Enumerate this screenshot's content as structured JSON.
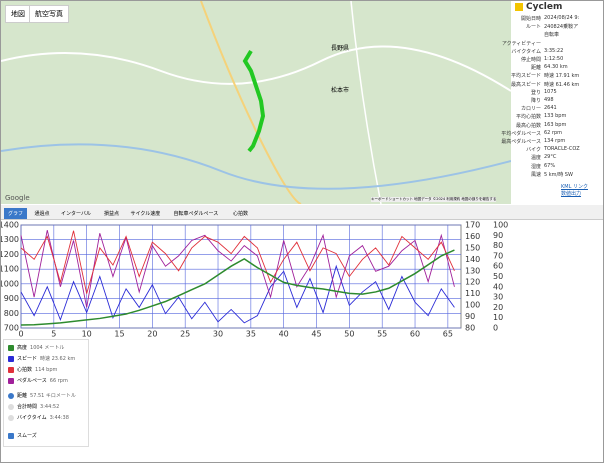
{
  "map": {
    "tabs": [
      "地図",
      "航空写真"
    ],
    "labels": [
      "長野県",
      "松本市",
      "Google"
    ],
    "footer": "キーボードショートカット 地図データ ©2024 利用規約 地図の誤りを報告する"
  },
  "summary": {
    "title": "Cyclem",
    "rows": [
      [
        "開始日時",
        "2024/08/24 9:"
      ],
      [
        "ルート",
        "240824乗鞍ア"
      ],
      [
        "",
        "自転車"
      ],
      [
        "アクティビティー",
        ""
      ],
      [
        "バイクタイム",
        "3:35:22"
      ],
      [
        "停止時間",
        "1:12:50"
      ],
      [
        "距離",
        "64.30 km"
      ],
      [
        "平均スピード",
        "時速 17.91 km"
      ],
      [
        "最高スピード",
        "時速 61.46 km"
      ],
      [
        "登り",
        "1075"
      ],
      [
        "降り",
        "498"
      ],
      [
        "カロリー",
        "2641"
      ],
      [
        "平均心拍数",
        "133 bpm"
      ],
      [
        "最高心拍数",
        "163 bpm"
      ],
      [
        "平均ペダルペース",
        "62 rpm"
      ],
      [
        "最高ペダルペース",
        "134 rpm"
      ],
      [
        "バイク",
        "TORACLE-COZ"
      ],
      [
        "温度",
        "29°C"
      ],
      [
        "湿度",
        "67%"
      ],
      [
        "風速",
        "5 km/時 SW"
      ]
    ],
    "links": [
      "KML リンク",
      "数値出力"
    ]
  },
  "tabs": [
    "グラフ",
    "通過点",
    "インターバル",
    "損益点",
    "サイクル速度",
    "自転車ペダルペース",
    "心拍数"
  ],
  "chart_data": {
    "type": "line",
    "x": [
      0,
      2,
      4,
      6,
      8,
      10,
      12,
      14,
      16,
      18,
      20,
      22,
      24,
      26,
      28,
      30,
      32,
      34,
      36,
      38,
      40,
      42,
      44,
      46,
      48,
      50,
      52,
      54,
      56,
      58,
      60,
      62,
      64,
      66
    ],
    "xlim": [
      0,
      67
    ],
    "xticks": [
      0,
      5,
      10,
      15,
      20,
      25,
      30,
      35,
      40,
      45,
      50,
      55,
      60,
      65
    ],
    "ylim": [
      700,
      1400
    ],
    "yticks": [
      700,
      800,
      900,
      1000,
      1100,
      1200,
      1300,
      1400
    ],
    "y2lim": [
      80,
      170
    ],
    "y2ticks": [
      80,
      90,
      100,
      110,
      120,
      130,
      140,
      150,
      160,
      170
    ],
    "y3lim": [
      0,
      100
    ],
    "y3ticks": [
      0,
      10,
      20,
      30,
      40,
      50,
      60,
      70,
      80,
      90,
      100
    ],
    "series": [
      {
        "name": "高度",
        "color": "#2e8b2e",
        "axis": "y",
        "values": [
          720,
          722,
          728,
          735,
          745,
          755,
          765,
          780,
          795,
          820,
          850,
          880,
          920,
          960,
          1000,
          1060,
          1120,
          1170,
          1110,
          1060,
          1010,
          990,
          975,
          965,
          950,
          935,
          930,
          945,
          970,
          1020,
          1070,
          1130,
          1190,
          1230
        ]
      },
      {
        "name": "スピード",
        "color": "#2b2bd6",
        "axis": "y3",
        "values": [
          35,
          12,
          40,
          8,
          45,
          15,
          50,
          10,
          38,
          20,
          42,
          14,
          30,
          9,
          25,
          6,
          18,
          5,
          12,
          40,
          55,
          20,
          48,
          15,
          60,
          22,
          35,
          45,
          18,
          50,
          25,
          12,
          38,
          20
        ]
      },
      {
        "name": "心拍数",
        "color": "#e0303a",
        "axis": "y2",
        "values": [
          150,
          140,
          160,
          120,
          165,
          110,
          150,
          135,
          160,
          125,
          155,
          145,
          130,
          150,
          160,
          155,
          145,
          160,
          150,
          120,
          140,
          155,
          130,
          150,
          145,
          125,
          140,
          150,
          135,
          160,
          150,
          140,
          155,
          130
        ]
      },
      {
        "name": "ペダルペース",
        "color": "#a0209a",
        "axis": "y3",
        "values": [
          90,
          30,
          95,
          40,
          85,
          20,
          92,
          50,
          88,
          35,
          80,
          60,
          70,
          85,
          90,
          75,
          65,
          80,
          70,
          30,
          85,
          40,
          60,
          90,
          30,
          70,
          80,
          55,
          60,
          75,
          85,
          45,
          90,
          40
        ]
      }
    ]
  },
  "legend": {
    "series_values": [
      "1004 メートル",
      "時速 23.62 km",
      "114 bpm",
      "66 rpm"
    ],
    "x_modes": [
      {
        "name": "距離",
        "value": "57.51 キロメートル"
      },
      {
        "name": "合計時間",
        "value": "3:44:52"
      },
      {
        "name": "バイクタイム",
        "value": "3:44:38"
      }
    ],
    "smooth": "スムーズ"
  }
}
